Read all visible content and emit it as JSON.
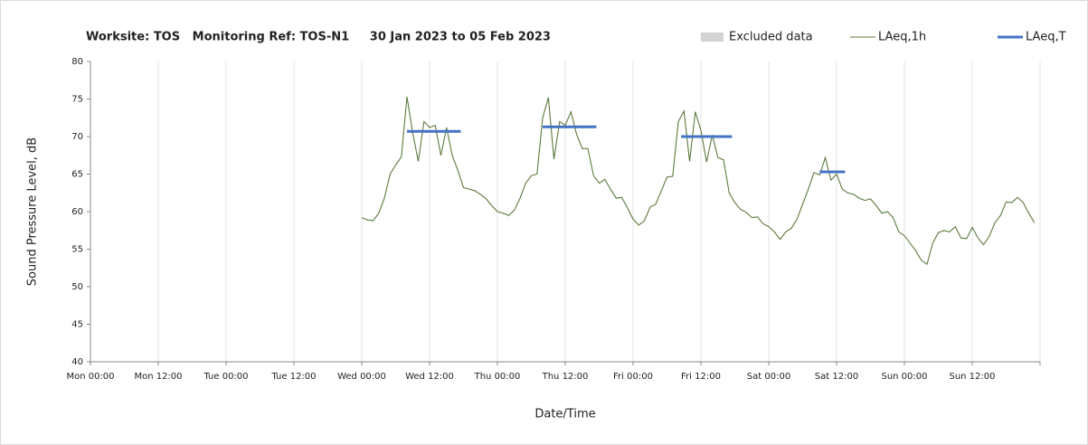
{
  "chart_data": {
    "type": "line",
    "title": "Worksite: TOS   Monitoring Ref: TOS-N1     30 Jan 2023 to 05 Feb 2023",
    "x_label": "Date/Time",
    "y_label": "Sound Pressure Level, dB",
    "xlim": [
      0,
      168
    ],
    "xticks": [
      {
        "value": 0,
        "label": "Mon 00:00"
      },
      {
        "value": 12,
        "label": "Mon 12:00"
      },
      {
        "value": 24,
        "label": "Tue 00:00"
      },
      {
        "value": 36,
        "label": "Tue 12:00"
      },
      {
        "value": 48,
        "label": "Wed 00:00"
      },
      {
        "value": 60,
        "label": "Wed 12:00"
      },
      {
        "value": 72,
        "label": "Thu 00:00"
      },
      {
        "value": 84,
        "label": "Thu 12:00"
      },
      {
        "value": 96,
        "label": "Fri 00:00"
      },
      {
        "value": 108,
        "label": "Fri 12:00"
      },
      {
        "value": 120,
        "label": "Sat 00:00"
      },
      {
        "value": 132,
        "label": "Sat 12:00"
      },
      {
        "value": 144,
        "label": "Sun 00:00"
      },
      {
        "value": 156,
        "label": "Sun 12:00"
      },
      168
    ],
    "ylim": [
      40,
      80
    ],
    "yticks": [
      40,
      45,
      50,
      55,
      60,
      65,
      70,
      75,
      80
    ],
    "grid": "x",
    "legend": "top-right",
    "series": [
      {
        "name": "Excluded data",
        "color": "#d3d3d3",
        "style": "box",
        "x": [],
        "values": []
      },
      {
        "name": "LAeq,1h",
        "color": "#5b7a3c",
        "style": "thin",
        "x": [
          48,
          49,
          50,
          51,
          52,
          53,
          54,
          55,
          56,
          57,
          58,
          59,
          60,
          61,
          62,
          63,
          64,
          65,
          66,
          67,
          68,
          69,
          70,
          71,
          72,
          73,
          74,
          75,
          76,
          77,
          78,
          79,
          80,
          81,
          82,
          83,
          84,
          85,
          86,
          87,
          88,
          89,
          90,
          91,
          92,
          93,
          94,
          95,
          96,
          97,
          98,
          99,
          100,
          101,
          102,
          103,
          104,
          105,
          106,
          107,
          108,
          109,
          110,
          111,
          112,
          113,
          114,
          115,
          116,
          117,
          118,
          119,
          120,
          121,
          122,
          123,
          124,
          125,
          126,
          127,
          128,
          129,
          130,
          131,
          132,
          133,
          134,
          135,
          136,
          137,
          138,
          139,
          140,
          141,
          142,
          143,
          144,
          145,
          146,
          147,
          148,
          149,
          150,
          151,
          152,
          153,
          154,
          155,
          156,
          157,
          158,
          159,
          160,
          161,
          162,
          163,
          164,
          165,
          166,
          167
        ],
        "values": [
          59.2,
          58.9,
          58.8,
          59.8,
          61.8,
          65.0,
          66.2,
          67.3,
          75.3,
          70.5,
          66.7,
          72.0,
          71.2,
          71.5,
          67.5,
          71.2,
          67.5,
          65.5,
          63.2,
          63.0,
          62.8,
          62.3,
          61.7,
          60.8,
          60.0,
          59.8,
          59.5,
          60.2,
          61.8,
          63.8,
          64.8,
          65.0,
          72.5,
          75.2,
          67.0,
          72.0,
          71.5,
          73.3,
          70.3,
          68.4,
          68.4,
          64.8,
          63.8,
          64.3,
          63.0,
          61.8,
          61.9,
          60.5,
          59.0,
          58.2,
          58.8,
          60.6,
          61.0,
          62.8,
          64.6,
          64.7,
          72.0,
          73.4,
          66.7,
          73.3,
          70.8,
          66.6,
          70.2,
          67.2,
          66.9,
          62.5,
          61.2,
          60.3,
          59.9,
          59.2,
          59.3,
          58.4,
          58.0,
          57.3,
          56.3,
          57.3,
          57.8,
          59.0,
          61.0,
          63.0,
          65.2,
          64.9,
          67.2,
          64.2,
          65.0,
          63.0,
          62.5,
          62.3,
          61.8,
          61.5,
          61.7,
          60.8,
          59.8,
          60.0,
          59.2,
          57.3,
          56.8,
          55.8,
          54.8,
          53.5,
          53.0,
          55.8,
          57.2,
          57.5,
          57.3,
          58.0,
          56.5,
          56.4,
          57.9,
          56.5,
          55.6,
          56.7,
          58.5,
          59.5,
          61.3,
          61.2,
          61.9,
          61.2,
          59.8,
          58.5
        ]
      },
      {
        "name": "LAeq,T",
        "color": "#4472c4",
        "style": "thick",
        "x": [
          56,
          65.5,
          66,
          80,
          89.5,
          90,
          104.5,
          113.5,
          114,
          129,
          133.5
        ],
        "values": [
          70.7,
          70.7,
          null,
          71.3,
          71.3,
          null,
          70.0,
          70.0,
          null,
          65.3,
          65.3
        ]
      }
    ]
  }
}
